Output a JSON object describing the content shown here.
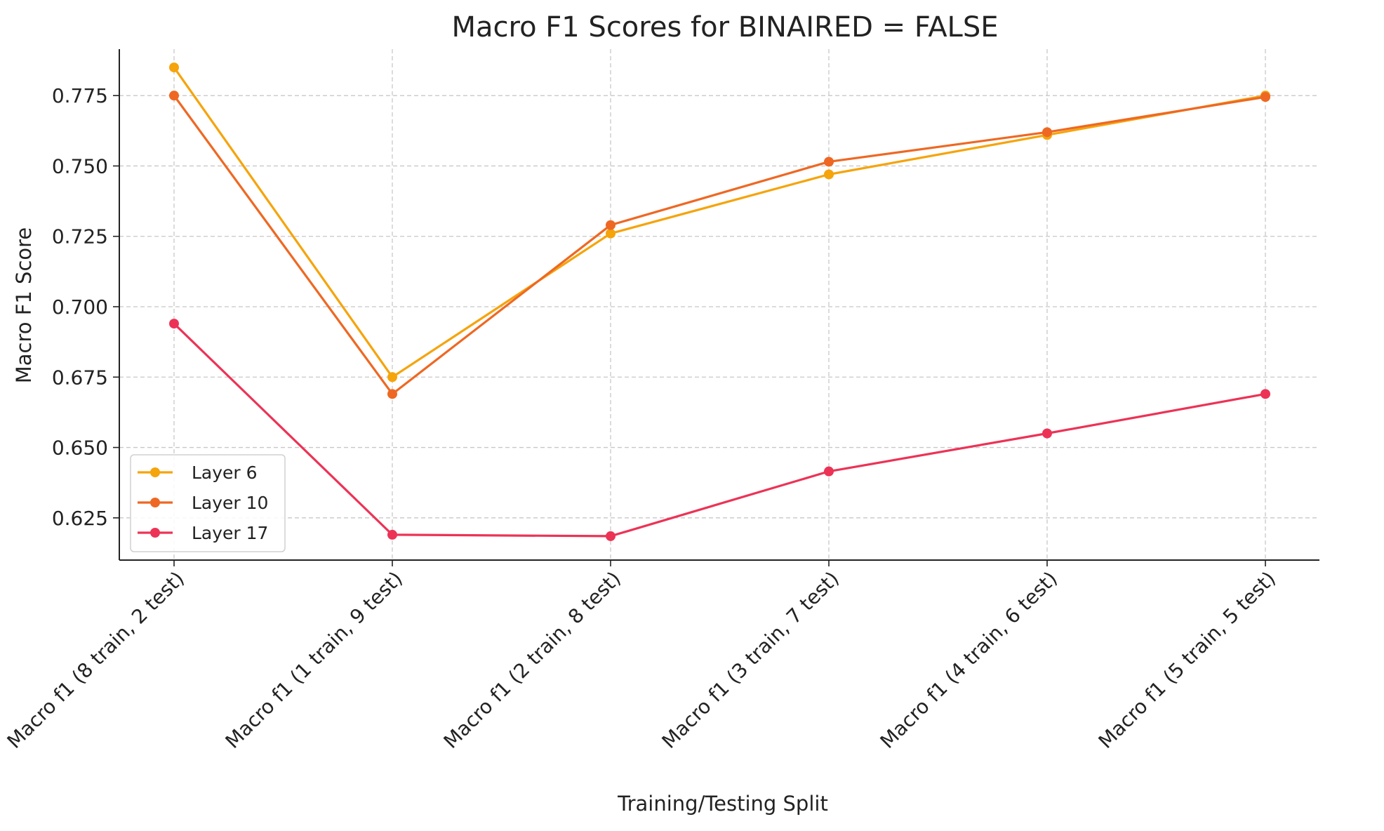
{
  "chart_data": {
    "type": "line",
    "title": "Macro F1 Scores for BINAIRED = FALSE",
    "xlabel": "Training/Testing Split",
    "ylabel": "Macro F1 Score",
    "categories": [
      "Macro f1 (8 train, 2 test)",
      "Macro f1 (1 train, 9 test)",
      "Macro f1 (2 train, 8 test)",
      "Macro f1 (3 train, 7 test)",
      "Macro f1 (4 train, 6 test)",
      "Macro f1 (5 train, 5 test)"
    ],
    "ylim": [
      0.61,
      0.7915
    ],
    "yticks": [
      0.625,
      0.65,
      0.675,
      0.7,
      0.725,
      0.75,
      0.775
    ],
    "ytick_labels": [
      "0.625",
      "0.650",
      "0.675",
      "0.700",
      "0.725",
      "0.750",
      "0.775"
    ],
    "grid": true,
    "legend_position": "lower-left",
    "series": [
      {
        "name": "Layer 6",
        "color": "#F5A40C",
        "values": [
          0.785,
          0.675,
          0.726,
          0.747,
          0.761,
          0.775
        ]
      },
      {
        "name": "Layer 10",
        "color": "#EE6823",
        "values": [
          0.775,
          0.669,
          0.729,
          0.7515,
          0.762,
          0.7745
        ]
      },
      {
        "name": "Layer 17",
        "color": "#EC3356",
        "values": [
          0.694,
          0.619,
          0.6185,
          0.6415,
          0.655,
          0.669
        ]
      }
    ]
  }
}
